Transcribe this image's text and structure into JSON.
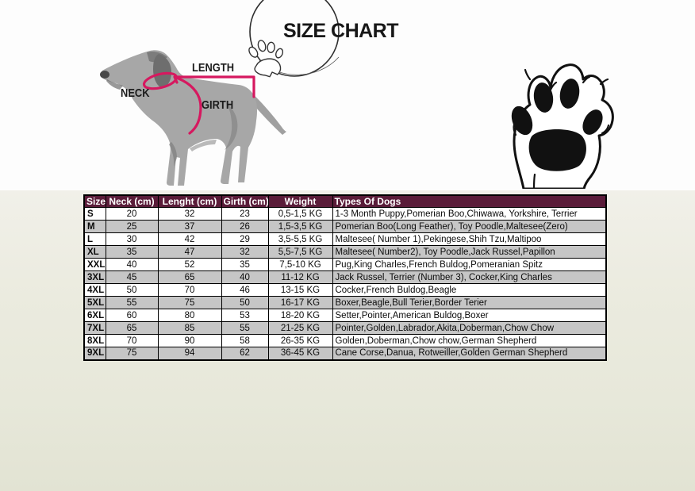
{
  "title": "SIZE CHART",
  "diagram_labels": {
    "neck": "NECK",
    "length": "LENGTH",
    "girth": "GIRTH"
  },
  "colors": {
    "header_bg": "#5a1c39",
    "row_alt": "#c6c6c6",
    "accent_pink": "#d6185f",
    "dog_gray": "#a7a7a7"
  },
  "icons": [
    "paw-print-icon",
    "paw-outline-icon",
    "circle-sketch",
    "dog-measurement-illustration"
  ],
  "table": {
    "columns": [
      "Size",
      "Neck (cm)",
      "Lenght (cm)",
      "Girth (cm)",
      "Weight",
      "Types Of Dogs"
    ],
    "rows": [
      [
        "S",
        "20",
        "32",
        "23",
        "0,5-1,5 KG",
        "1-3 Month Puppy,Pomerian Boo,Chiwawa, Yorkshire, Terrier"
      ],
      [
        "M",
        "25",
        "37",
        "26",
        "1,5-3,5 KG",
        "Pomerian Boo(Long Feather), Toy Poodle,Maltesee(Zero)"
      ],
      [
        "L",
        "30",
        "42",
        "29",
        "3,5-5,5 KG",
        "Maltesee( Number 1),Pekingese,Shih Tzu,Maltipoo"
      ],
      [
        "XL",
        "35",
        "47",
        "32",
        "5,5-7,5 KG",
        "Maltesee( Number2), Toy Poodle,Jack Russel,Papillon"
      ],
      [
        "XXL",
        "40",
        "52",
        "35",
        "7,5-10 KG",
        "Pug,King Charles,French Buldog,Pomeranian Spitz"
      ],
      [
        "3XL",
        "45",
        "65",
        "40",
        "11-12 KG",
        "Jack Russel, Terrier (Number 3), Cocker,King Charles"
      ],
      [
        "4XL",
        "50",
        "70",
        "46",
        "13-15 KG",
        "Cocker,French Buldog,Beagle"
      ],
      [
        "5XL",
        "55",
        "75",
        "50",
        "16-17 KG",
        "Boxer,Beagle,Bull Terier,Border Terier"
      ],
      [
        "6XL",
        "60",
        "80",
        "53",
        "18-20 KG",
        "Setter,Pointer,American Buldog,Boxer"
      ],
      [
        "7XL",
        "65",
        "85",
        "55",
        "21-25 KG",
        "Pointer,Golden,Labrador,Akita,Doberman,Chow Chow"
      ],
      [
        "8XL",
        "70",
        "90",
        "58",
        "26-35 KG",
        "Golden,Doberman,Chow chow,German Shepherd"
      ],
      [
        "9XL",
        "75",
        "94",
        "62",
        "36-45 KG",
        "Cane Corse,Danua, Rotweiller,Golden German Shepherd"
      ]
    ]
  }
}
